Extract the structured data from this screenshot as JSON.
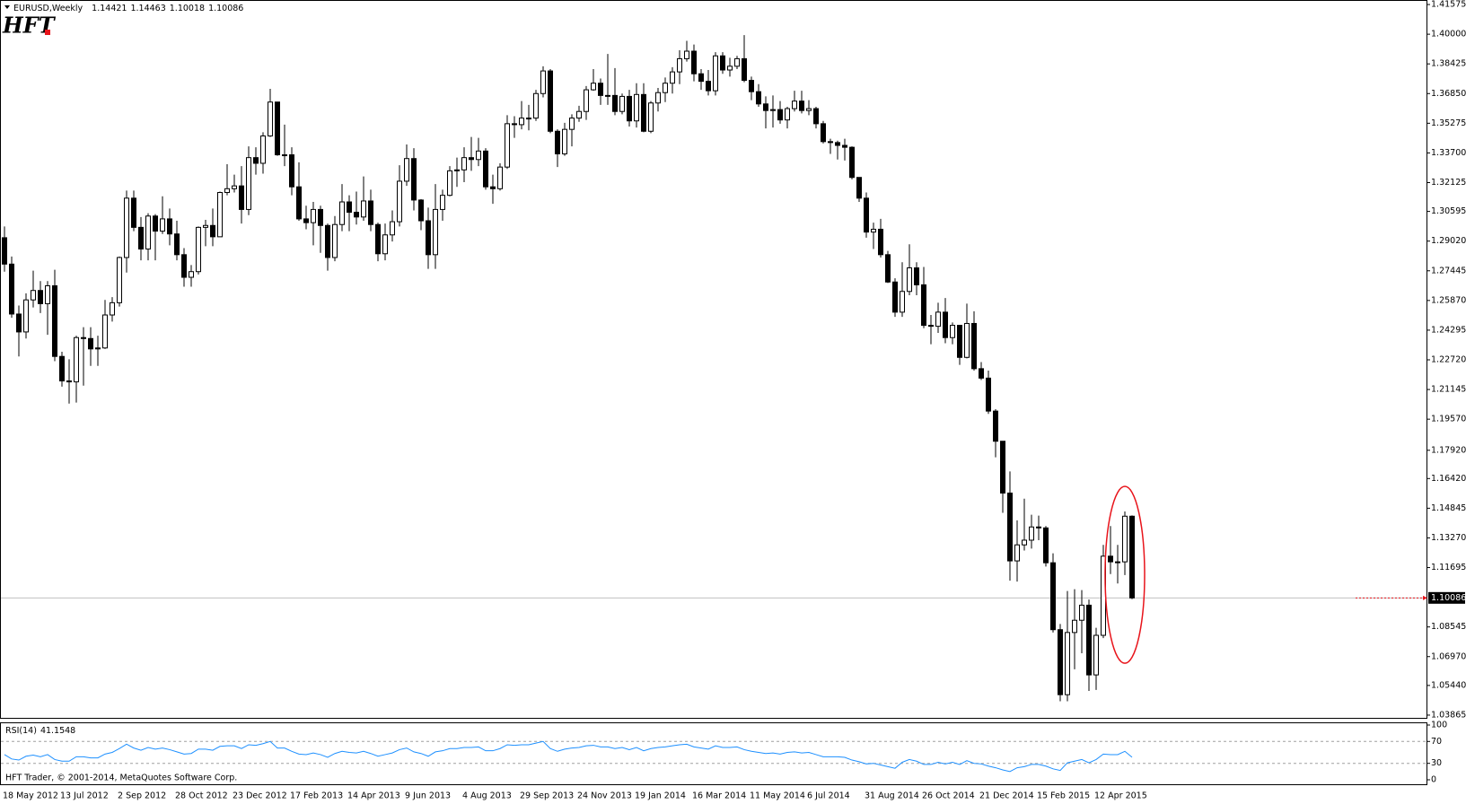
{
  "header": {
    "symbol": "EURUSD,Weekly"
  },
  "logo": "HFT",
  "footer": "HFT Trader, © 2001-2014, MetaQuotes Software Corp.",
  "chart_data": [
    {
      "type": "candlestick",
      "categories": [
        "18 May 2012",
        null,
        null,
        null,
        null,
        null,
        null,
        null,
        "13 Jul 2012",
        null,
        null,
        null,
        null,
        null,
        null,
        null,
        "2 Sep 2012",
        null,
        null,
        null,
        null,
        null,
        null,
        null,
        "28 Oct 2012",
        null,
        null,
        null,
        null,
        null,
        null,
        null,
        "23 Dec 2012",
        null,
        null,
        null,
        null,
        null,
        null,
        null,
        "17 Feb 2013",
        null,
        null,
        null,
        null,
        null,
        null,
        null,
        "14 Apr 2013",
        null,
        null,
        null,
        null,
        null,
        null,
        null,
        "9 Jun 2013",
        null,
        null,
        null,
        null,
        null,
        null,
        null,
        "4 Aug 2013",
        null,
        null,
        null,
        null,
        null,
        null,
        null,
        "29 Sep 2013",
        null,
        null,
        null,
        null,
        null,
        null,
        null,
        "24 Nov 2013",
        null,
        null,
        null,
        null,
        null,
        null,
        null,
        "19 Jan 2014",
        null,
        null,
        null,
        null,
        null,
        null,
        null,
        "16 Mar 2014",
        null,
        null,
        null,
        null,
        null,
        null,
        null,
        "11 May 2014",
        null,
        null,
        null,
        null,
        null,
        null,
        null,
        "6 Jul 2014",
        null,
        null,
        null,
        null,
        null,
        null,
        null,
        "31 Aug 2014",
        null,
        null,
        null,
        null,
        null,
        null,
        null,
        "26 Oct 2014",
        null,
        null,
        null,
        null,
        null,
        null,
        null,
        "21 Dec 2014",
        null,
        null,
        null,
        null,
        null,
        null,
        null,
        "15 Feb 2015",
        null,
        null,
        null,
        null,
        null,
        null,
        null,
        "12 Apr 2015",
        null,
        null,
        null,
        null,
        null
      ],
      "open": [
        1.292,
        1.278,
        1.2515,
        1.242,
        1.259,
        1.264,
        1.257,
        1.2665,
        1.229,
        1.216,
        1.2155,
        1.239,
        1.2385,
        1.233,
        1.2335,
        1.251,
        1.2575,
        1.2815,
        1.313,
        1.2975,
        1.286,
        1.3035,
        1.2955,
        1.302,
        1.294,
        1.283,
        1.271,
        1.274,
        1.2975,
        1.2985,
        1.2925,
        1.316,
        1.318,
        1.3195,
        1.307,
        1.3345,
        1.3315,
        1.346,
        1.364,
        1.336,
        1.336,
        1.319,
        1.302,
        1.3,
        1.307,
        1.2985,
        1.2815,
        1.299,
        1.311,
        1.3055,
        1.303,
        1.3115,
        1.299,
        1.2835,
        1.2935,
        1.3005,
        1.322,
        1.334,
        1.312,
        1.301,
        1.283,
        1.307,
        1.3145,
        1.3275,
        1.328,
        1.3345,
        1.3335,
        1.338,
        1.319,
        1.318,
        1.3295,
        1.3525,
        1.352,
        1.3555,
        1.3555,
        1.3685,
        1.3805,
        1.3485,
        1.3365,
        1.3495,
        1.3555,
        1.359,
        1.3705,
        1.374,
        1.3675,
        1.3675,
        1.359,
        1.367,
        1.354,
        1.368,
        1.3485,
        1.3635,
        1.369,
        1.374,
        1.38,
        1.387,
        1.391,
        1.379,
        1.375,
        1.37,
        1.3885,
        1.381,
        1.383,
        1.387,
        1.3755,
        1.3695,
        1.363,
        1.3595,
        1.36,
        1.3545,
        1.3605,
        1.3645,
        1.3595,
        1.3605,
        1.3525,
        1.343,
        1.3425,
        1.341,
        1.34,
        1.324,
        1.313,
        1.295,
        1.2965,
        1.283,
        1.2685,
        1.2525,
        1.2635,
        1.276,
        1.267,
        1.2455,
        1.245,
        1.2525,
        1.239,
        1.2455,
        1.2285,
        1.2465,
        1.2225,
        1.2175,
        1.2,
        1.184,
        1.1565,
        1.1205,
        1.129,
        1.1315,
        1.1385,
        1.138,
        1.1195,
        1.084,
        1.0495,
        1.0825,
        1.089,
        1.097,
        1.06,
        1.081,
        1.123,
        1.12,
        1.12,
        1.14421
      ],
      "high": [
        1.298,
        1.282,
        1.256,
        1.2625,
        1.2745,
        1.269,
        1.269,
        1.275,
        1.2315,
        1.2275,
        1.24,
        1.2445,
        1.2445,
        1.24,
        1.259,
        1.2605,
        1.282,
        1.317,
        1.317,
        1.303,
        1.305,
        1.3045,
        1.314,
        1.3075,
        1.301,
        1.2865,
        1.2775,
        1.298,
        1.3015,
        1.3075,
        1.3165,
        1.331,
        1.3255,
        1.33,
        1.3405,
        1.34,
        1.348,
        1.371,
        1.364,
        1.352,
        1.34,
        1.332,
        1.309,
        1.311,
        1.309,
        1.2995,
        1.3035,
        1.3205,
        1.3145,
        1.3165,
        1.3245,
        1.3175,
        1.3,
        1.2995,
        1.3065,
        1.3305,
        1.3415,
        1.3395,
        1.3125,
        1.308,
        1.3205,
        1.3175,
        1.33,
        1.3345,
        1.34,
        1.3455,
        1.345,
        1.3395,
        1.3255,
        1.3315,
        1.357,
        1.3565,
        1.3645,
        1.3625,
        1.3705,
        1.383,
        1.3815,
        1.3495,
        1.353,
        1.3575,
        1.362,
        1.3725,
        1.3815,
        1.3765,
        1.3895,
        1.382,
        1.3685,
        1.3705,
        1.374,
        1.374,
        1.3645,
        1.3715,
        1.377,
        1.3825,
        1.3915,
        1.3965,
        1.3945,
        1.3815,
        1.381,
        1.3905,
        1.3905,
        1.3875,
        1.3885,
        1.3995,
        1.3775,
        1.3735,
        1.367,
        1.3675,
        1.3645,
        1.3615,
        1.37,
        1.37,
        1.365,
        1.3615,
        1.354,
        1.3445,
        1.3435,
        1.3445,
        1.3405,
        1.324,
        1.316,
        1.3,
        1.302,
        1.285,
        1.2705,
        1.279,
        1.2885,
        1.279,
        1.2765,
        1.251,
        1.2575,
        1.26,
        1.247,
        1.2455,
        1.257,
        1.253,
        1.226,
        1.2215,
        1.201,
        1.184,
        1.168,
        1.142,
        1.1535,
        1.145,
        1.1445,
        1.139,
        1.1245,
        1.087,
        1.1045,
        1.1055,
        1.105,
        1.1,
        1.085,
        1.129,
        1.139,
        1.129,
        1.1467,
        1.14463
      ],
      "low": [
        1.274,
        1.2495,
        1.229,
        1.2385,
        1.255,
        1.252,
        1.2405,
        1.2265,
        1.213,
        1.204,
        1.2045,
        1.2135,
        1.224,
        1.224,
        1.233,
        1.2475,
        1.2555,
        1.2735,
        1.2955,
        1.28,
        1.28,
        1.28,
        1.294,
        1.288,
        1.28,
        1.266,
        1.266,
        1.2725,
        1.2875,
        1.2875,
        1.2925,
        1.3145,
        1.316,
        1.2995,
        1.304,
        1.3255,
        1.326,
        1.3455,
        1.3355,
        1.33,
        1.3145,
        1.301,
        1.2965,
        1.288,
        1.284,
        1.2745,
        1.2795,
        1.2955,
        1.2955,
        1.299,
        1.301,
        1.2955,
        1.2795,
        1.28,
        1.29,
        1.298,
        1.3195,
        1.3065,
        1.296,
        1.2755,
        1.2755,
        1.301,
        1.314,
        1.319,
        1.3215,
        1.3275,
        1.33,
        1.3175,
        1.31,
        1.317,
        1.3285,
        1.345,
        1.3495,
        1.349,
        1.354,
        1.3665,
        1.3475,
        1.3295,
        1.3355,
        1.3405,
        1.3535,
        1.3545,
        1.37,
        1.3625,
        1.3625,
        1.357,
        1.3575,
        1.351,
        1.3505,
        1.348,
        1.3475,
        1.359,
        1.364,
        1.3685,
        1.3735,
        1.3855,
        1.375,
        1.3705,
        1.3675,
        1.3675,
        1.379,
        1.3775,
        1.3815,
        1.3745,
        1.365,
        1.3615,
        1.35,
        1.3505,
        1.3525,
        1.35,
        1.359,
        1.358,
        1.357,
        1.35,
        1.342,
        1.3365,
        1.3335,
        1.333,
        1.323,
        1.311,
        1.292,
        1.286,
        1.2815,
        1.268,
        1.25,
        1.25,
        1.2615,
        1.2615,
        1.244,
        1.2355,
        1.2415,
        1.236,
        1.2355,
        1.2245,
        1.228,
        1.2215,
        1.2165,
        1.1985,
        1.1755,
        1.146,
        1.11,
        1.1095,
        1.126,
        1.127,
        1.1315,
        1.1175,
        1.0825,
        1.046,
        1.046,
        1.063,
        1.0715,
        1.0515,
        1.052,
        1.0795,
        1.1135,
        1.1085,
        1.113,
        1.10018
      ],
      "close": [
        1.278,
        1.2515,
        1.242,
        1.259,
        1.264,
        1.257,
        1.2665,
        1.229,
        1.216,
        1.2155,
        1.239,
        1.2385,
        1.233,
        1.2335,
        1.251,
        1.2575,
        1.2815,
        1.313,
        1.2975,
        1.286,
        1.3035,
        1.2955,
        1.302,
        1.294,
        1.283,
        1.271,
        1.274,
        1.2975,
        1.2985,
        1.2925,
        1.316,
        1.318,
        1.3195,
        1.307,
        1.3345,
        1.3315,
        1.346,
        1.364,
        1.336,
        1.336,
        1.319,
        1.302,
        1.3,
        1.307,
        1.2985,
        1.2815,
        1.299,
        1.311,
        1.3055,
        1.303,
        1.3115,
        1.299,
        1.2835,
        1.2935,
        1.3005,
        1.322,
        1.334,
        1.312,
        1.301,
        1.283,
        1.307,
        1.3145,
        1.3275,
        1.328,
        1.3345,
        1.3335,
        1.338,
        1.319,
        1.318,
        1.3295,
        1.3525,
        1.352,
        1.3555,
        1.3555,
        1.3685,
        1.3805,
        1.3485,
        1.3365,
        1.3495,
        1.3555,
        1.359,
        1.3705,
        1.374,
        1.3675,
        1.3675,
        1.359,
        1.367,
        1.354,
        1.368,
        1.3485,
        1.3635,
        1.369,
        1.374,
        1.38,
        1.387,
        1.391,
        1.379,
        1.375,
        1.37,
        1.3885,
        1.381,
        1.383,
        1.387,
        1.3755,
        1.3695,
        1.363,
        1.3595,
        1.36,
        1.3545,
        1.3605,
        1.3645,
        1.3595,
        1.3605,
        1.3525,
        1.343,
        1.3425,
        1.341,
        1.34,
        1.324,
        1.313,
        1.295,
        1.2965,
        1.283,
        1.2685,
        1.2525,
        1.2635,
        1.276,
        1.267,
        1.2455,
        1.245,
        1.2525,
        1.239,
        1.2455,
        1.2285,
        1.2465,
        1.2225,
        1.2175,
        1.2,
        1.184,
        1.1565,
        1.1205,
        1.129,
        1.1315,
        1.1385,
        1.138,
        1.1195,
        1.084,
        1.0495,
        1.0825,
        1.089,
        1.097,
        1.06,
        1.081,
        1.123,
        1.12,
        1.12,
        1.14421,
        1.10086
      ],
      "ylim": [
        1.0372,
        1.4172
      ],
      "yticks": [
        1.41575,
        {
          "value": 1.4,
          "label": "1.40000"
        },
        1.38425,
        {
          "value": 1.3685,
          "label": "1.36850"
        },
        1.35275,
        {
          "value": 1.337,
          "label": "1.33700"
        },
        1.32125,
        1.30595,
        {
          "value": 1.2902,
          "label": "1.29020"
        },
        1.27445,
        {
          "value": 1.2587,
          "label": "1.25870"
        },
        1.24295,
        {
          "value": 1.2272,
          "label": "1.22720"
        },
        1.21145,
        {
          "value": 1.1957,
          "label": "1.19570"
        },
        {
          "value": 1.1792,
          "label": "1.17920"
        },
        {
          "value": 1.1642,
          "label": "1.16420"
        },
        1.14845,
        {
          "value": 1.1327,
          "label": "1.13270"
        },
        1.11695,
        1.08545,
        {
          "value": 1.0697,
          "label": "1.06970"
        },
        {
          "value": 1.0544,
          "label": "1.05440"
        },
        1.03865
      ],
      "up_color": "#ffffff",
      "down_color": "#000000",
      "edge_color": "#000000"
    },
    {
      "type": "line",
      "title": "RSI(14)",
      "color": "#1e90ff",
      "values": [
        46,
        38,
        36,
        43,
        45,
        42,
        46,
        37,
        34,
        34,
        42,
        42,
        40,
        40,
        47,
        50,
        57,
        65,
        58,
        54,
        59,
        56,
        58,
        55,
        51,
        47,
        48,
        56,
        56,
        54,
        61,
        62,
        62,
        57,
        64,
        63,
        66,
        70,
        58,
        58,
        52,
        47,
        46,
        49,
        46,
        41,
        48,
        52,
        50,
        49,
        52,
        48,
        43,
        46,
        49,
        55,
        58,
        51,
        48,
        43,
        51,
        53,
        57,
        57,
        59,
        59,
        60,
        53,
        53,
        57,
        64,
        63,
        64,
        64,
        67,
        70,
        57,
        52,
        56,
        58,
        59,
        62,
        63,
        60,
        60,
        57,
        59,
        55,
        59,
        53,
        57,
        59,
        60,
        62,
        64,
        65,
        60,
        58,
        56,
        62,
        59,
        59,
        60,
        55,
        52,
        50,
        48,
        49,
        47,
        50,
        51,
        49,
        50,
        46,
        42,
        42,
        42,
        41,
        36,
        33,
        29,
        30,
        27,
        24,
        21,
        32,
        37,
        34,
        28,
        28,
        32,
        29,
        32,
        28,
        35,
        30,
        29,
        25,
        22,
        18,
        15,
        22,
        24,
        28,
        28,
        25,
        20,
        17,
        31,
        34,
        37,
        31,
        37,
        47,
        46,
        46,
        52,
        41.1548
      ],
      "ylim": [
        0,
        100
      ],
      "yticks": [
        100,
        70,
        30,
        0
      ],
      "levels": [
        70,
        30
      ]
    }
  ]
}
